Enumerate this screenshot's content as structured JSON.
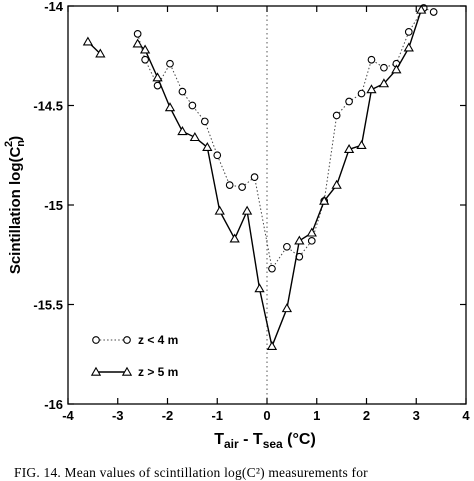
{
  "chart_data": {
    "type": "line",
    "xlabel_parts": [
      "T",
      "air",
      " - T",
      "sea",
      "  (°C)"
    ],
    "ylabel_parts": [
      "Scintillation log(C",
      "n",
      "2",
      ")"
    ],
    "xlim": [
      -4,
      4
    ],
    "ylim": [
      -16,
      -14
    ],
    "xticks": [
      -4,
      -3,
      -2,
      -1,
      0,
      1,
      2,
      3,
      4
    ],
    "yticks": [
      -14,
      -14.5,
      -15,
      -15.5,
      -16
    ],
    "ytick_labels": [
      "-14",
      "-14.5",
      "-15",
      "-15.5",
      "-16"
    ],
    "zero_line": 0,
    "legend_position": "bottom-left",
    "series": [
      {
        "name": "z < 4 m",
        "marker": "circle",
        "line": "dotted",
        "points": [
          [
            -2.6,
            -14.14
          ],
          [
            -2.45,
            -14.27
          ],
          [
            -2.2,
            -14.4
          ],
          [
            -1.95,
            -14.29
          ],
          [
            -1.7,
            -14.43
          ],
          [
            -1.5,
            -14.5
          ],
          [
            -1.25,
            -14.58
          ],
          [
            -1.0,
            -14.75
          ],
          [
            -0.75,
            -14.9
          ],
          [
            -0.5,
            -14.91
          ],
          [
            -0.25,
            -14.86
          ],
          [
            0.1,
            -15.32
          ],
          [
            0.4,
            -15.21
          ],
          [
            0.65,
            -15.26
          ],
          [
            0.9,
            -15.18
          ],
          [
            1.15,
            -14.98
          ],
          [
            1.4,
            -14.55
          ],
          [
            1.65,
            -14.48
          ],
          [
            1.9,
            -14.44
          ],
          [
            2.1,
            -14.27
          ],
          [
            2.35,
            -14.31
          ],
          [
            2.6,
            -14.29
          ],
          [
            2.85,
            -14.13
          ],
          [
            3.15,
            -14.01
          ],
          [
            3.35,
            -14.03
          ]
        ]
      },
      {
        "name": "z > 5 m",
        "marker": "triangle",
        "line": "solid",
        "segments": [
          [
            [
              -3.6,
              -14.18
            ],
            [
              -3.35,
              -14.24
            ]
          ],
          [
            [
              -2.6,
              -14.19
            ],
            [
              -2.45,
              -14.22
            ],
            [
              -2.2,
              -14.36
            ],
            [
              -1.95,
              -14.51
            ],
            [
              -1.7,
              -14.63
            ],
            [
              -1.45,
              -14.66
            ],
            [
              -1.2,
              -14.71
            ],
            [
              -0.95,
              -15.03
            ],
            [
              -0.65,
              -15.17
            ],
            [
              -0.4,
              -15.03
            ],
            [
              -0.15,
              -15.42
            ],
            [
              0.1,
              -15.71
            ],
            [
              0.4,
              -15.52
            ],
            [
              0.65,
              -15.18
            ],
            [
              0.9,
              -15.14
            ],
            [
              1.15,
              -14.98
            ],
            [
              1.4,
              -14.9
            ],
            [
              1.65,
              -14.72
            ],
            [
              1.9,
              -14.7
            ],
            [
              2.1,
              -14.42
            ],
            [
              2.35,
              -14.39
            ],
            [
              2.6,
              -14.32
            ],
            [
              2.85,
              -14.21
            ],
            [
              3.1,
              -14.02
            ]
          ]
        ]
      }
    ]
  },
  "caption": "FIG. 14. Mean values of scintillation log(C²) measurements for"
}
